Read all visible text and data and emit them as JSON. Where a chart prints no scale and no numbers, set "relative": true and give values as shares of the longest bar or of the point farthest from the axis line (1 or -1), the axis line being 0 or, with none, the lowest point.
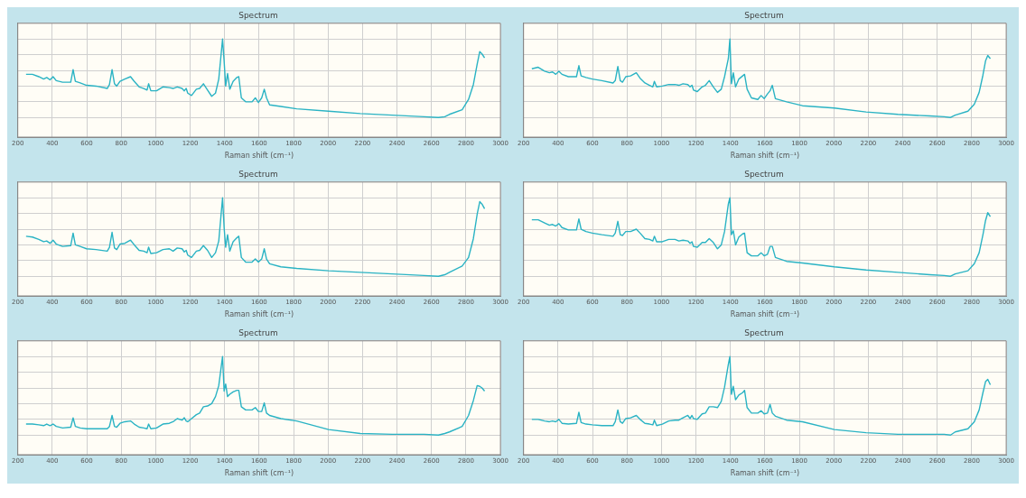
{
  "chart_data": [
    {
      "type": "line",
      "title": "Spectrum",
      "xlabel": "Raman shift (cm⁻¹)",
      "relative": true,
      "grid": true,
      "legend": false,
      "tick_labels": "x",
      "marker": "none",
      "xlim": [
        200,
        3000
      ],
      "xticks": [
        200,
        400,
        600,
        800,
        1000,
        1200,
        1400,
        1600,
        1800,
        2000,
        2200,
        2400,
        2600,
        2800,
        3000
      ],
      "x": [
        248,
        285,
        322,
        350,
        368,
        387,
        405,
        423,
        460,
        507,
        521,
        534,
        562,
        599,
        654,
        719,
        732,
        747,
        761,
        774,
        793,
        821,
        854,
        876,
        904,
        931,
        950,
        959,
        972,
        1005,
        1042,
        1079,
        1101,
        1125,
        1153,
        1166,
        1177,
        1186,
        1208,
        1236,
        1255,
        1277,
        1301,
        1325,
        1347,
        1366,
        1388,
        1397,
        1406,
        1417,
        1430,
        1449,
        1471,
        1482,
        1497,
        1522,
        1559,
        1578,
        1596,
        1615,
        1630,
        1643,
        1661,
        1726,
        1818,
        2003,
        2187,
        2372,
        2557,
        2640,
        2677,
        2704,
        2778,
        2815,
        2843,
        2865,
        2880,
        2893,
        2908
      ],
      "series": [
        {
          "color": "#2ab3c4",
          "values": [
            0.55,
            0.55,
            0.52,
            0.49,
            0.51,
            0.48,
            0.52,
            0.47,
            0.45,
            0.45,
            0.61,
            0.46,
            0.44,
            0.41,
            0.4,
            0.37,
            0.42,
            0.61,
            0.43,
            0.4,
            0.46,
            0.49,
            0.52,
            0.46,
            0.39,
            0.37,
            0.35,
            0.43,
            0.34,
            0.34,
            0.39,
            0.38,
            0.37,
            0.39,
            0.37,
            0.34,
            0.37,
            0.31,
            0.28,
            0.36,
            0.37,
            0.43,
            0.35,
            0.27,
            0.31,
            0.49,
            1,
            0.72,
            0.4,
            0.56,
            0.36,
            0.46,
            0.51,
            0.52,
            0.25,
            0.2,
            0.2,
            0.25,
            0.19,
            0.25,
            0.36,
            0.25,
            0.16,
            0.14,
            0.11,
            0.08,
            0.05,
            0.03,
            0.01,
            0,
            0.01,
            0.04,
            0.1,
            0.23,
            0.42,
            0.68,
            0.84,
            0.81,
            0.76
          ]
        }
      ]
    },
    {
      "type": "line",
      "title": "Spectrum",
      "xlabel": "Raman shift (cm⁻¹)",
      "relative": true,
      "grid": true,
      "legend": false,
      "tick_labels": "x",
      "marker": "none",
      "xlim": [
        200,
        3000
      ],
      "xticks": [
        200,
        400,
        600,
        800,
        1000,
        1200,
        1400,
        1600,
        1800,
        2000,
        2200,
        2400,
        2600,
        2800,
        3000
      ],
      "x": [
        248,
        285,
        322,
        350,
        368,
        387,
        405,
        423,
        460,
        507,
        521,
        534,
        562,
        599,
        654,
        719,
        732,
        747,
        761,
        774,
        793,
        821,
        854,
        876,
        904,
        931,
        950,
        959,
        972,
        1005,
        1042,
        1079,
        1101,
        1125,
        1153,
        1166,
        1177,
        1186,
        1208,
        1236,
        1255,
        1277,
        1301,
        1325,
        1347,
        1366,
        1388,
        1397,
        1406,
        1417,
        1430,
        1449,
        1471,
        1482,
        1497,
        1522,
        1559,
        1578,
        1596,
        1615,
        1630,
        1643,
        1661,
        1726,
        1818,
        2003,
        2187,
        2372,
        2557,
        2640,
        2677,
        2704,
        2778,
        2815,
        2843,
        2865,
        2880,
        2893,
        2908
      ],
      "series": [
        {
          "color": "#2ab3c4",
          "values": [
            0.62,
            0.64,
            0.59,
            0.57,
            0.58,
            0.55,
            0.59,
            0.55,
            0.52,
            0.52,
            0.66,
            0.53,
            0.51,
            0.49,
            0.47,
            0.44,
            0.47,
            0.65,
            0.47,
            0.45,
            0.52,
            0.53,
            0.57,
            0.5,
            0.44,
            0.41,
            0.39,
            0.46,
            0.39,
            0.4,
            0.42,
            0.42,
            0.41,
            0.43,
            0.42,
            0.39,
            0.41,
            0.35,
            0.33,
            0.39,
            0.41,
            0.47,
            0.39,
            0.32,
            0.36,
            0.52,
            0.75,
            1,
            0.43,
            0.57,
            0.39,
            0.49,
            0.53,
            0.55,
            0.36,
            0.25,
            0.23,
            0.28,
            0.24,
            0.3,
            0.34,
            0.41,
            0.24,
            0.2,
            0.15,
            0.12,
            0.07,
            0.04,
            0.02,
            0.01,
            0,
            0.03,
            0.08,
            0.17,
            0.32,
            0.54,
            0.72,
            0.79,
            0.75
          ]
        }
      ]
    },
    {
      "type": "line",
      "title": "Spectrum",
      "xlabel": "Raman shift (cm⁻¹)",
      "relative": true,
      "grid": true,
      "legend": false,
      "tick_labels": "x",
      "marker": "none",
      "xlim": [
        200,
        3000
      ],
      "xticks": [
        200,
        400,
        600,
        800,
        1000,
        1200,
        1400,
        1600,
        1800,
        2000,
        2200,
        2400,
        2600,
        2800,
        3000
      ],
      "x": [
        248,
        285,
        322,
        350,
        368,
        387,
        405,
        423,
        460,
        507,
        521,
        534,
        562,
        599,
        654,
        719,
        732,
        747,
        761,
        774,
        793,
        821,
        854,
        876,
        904,
        931,
        950,
        959,
        972,
        1005,
        1042,
        1079,
        1101,
        1125,
        1153,
        1166,
        1177,
        1186,
        1208,
        1236,
        1255,
        1277,
        1301,
        1325,
        1347,
        1366,
        1388,
        1397,
        1406,
        1417,
        1430,
        1449,
        1471,
        1482,
        1497,
        1522,
        1559,
        1578,
        1596,
        1615,
        1630,
        1643,
        1661,
        1726,
        1818,
        2003,
        2187,
        2372,
        2557,
        2640,
        2677,
        2704,
        2778,
        2815,
        2843,
        2865,
        2880,
        2893,
        2908
      ],
      "series": [
        {
          "color": "#2ab3c4",
          "values": [
            0.51,
            0.5,
            0.47,
            0.44,
            0.45,
            0.42,
            0.46,
            0.41,
            0.38,
            0.39,
            0.55,
            0.4,
            0.38,
            0.35,
            0.34,
            0.32,
            0.37,
            0.56,
            0.36,
            0.34,
            0.41,
            0.42,
            0.46,
            0.4,
            0.33,
            0.32,
            0.3,
            0.37,
            0.29,
            0.3,
            0.34,
            0.35,
            0.32,
            0.36,
            0.35,
            0.31,
            0.33,
            0.27,
            0.24,
            0.32,
            0.33,
            0.39,
            0.33,
            0.24,
            0.3,
            0.45,
            1,
            0.62,
            0.37,
            0.53,
            0.32,
            0.44,
            0.49,
            0.51,
            0.24,
            0.18,
            0.18,
            0.22,
            0.18,
            0.22,
            0.35,
            0.22,
            0.16,
            0.12,
            0.1,
            0.07,
            0.05,
            0.03,
            0.01,
            0,
            0.02,
            0.05,
            0.13,
            0.24,
            0.48,
            0.79,
            0.95,
            0.92,
            0.86
          ]
        }
      ]
    },
    {
      "type": "line",
      "title": "Spectrum",
      "xlabel": "Raman shift (cm⁻¹)",
      "relative": true,
      "grid": true,
      "legend": false,
      "tick_labels": "x",
      "marker": "none",
      "xlim": [
        200,
        3000
      ],
      "xticks": [
        200,
        400,
        600,
        800,
        1000,
        1200,
        1400,
        1600,
        1800,
        2000,
        2200,
        2400,
        2600,
        2800,
        3000
      ],
      "x": [
        248,
        285,
        322,
        350,
        368,
        387,
        405,
        423,
        460,
        507,
        521,
        534,
        562,
        599,
        654,
        719,
        732,
        747,
        761,
        774,
        793,
        821,
        854,
        876,
        904,
        931,
        950,
        959,
        972,
        1005,
        1042,
        1079,
        1101,
        1125,
        1153,
        1166,
        1177,
        1186,
        1208,
        1236,
        1255,
        1277,
        1301,
        1325,
        1347,
        1366,
        1388,
        1397,
        1406,
        1417,
        1430,
        1449,
        1471,
        1482,
        1497,
        1522,
        1559,
        1578,
        1596,
        1615,
        1630,
        1643,
        1661,
        1726,
        1818,
        2003,
        2187,
        2372,
        2557,
        2640,
        2677,
        2704,
        2778,
        2815,
        2843,
        2865,
        2880,
        2893,
        2908
      ],
      "series": [
        {
          "color": "#2ab3c4",
          "values": [
            0.72,
            0.72,
            0.68,
            0.65,
            0.66,
            0.64,
            0.67,
            0.62,
            0.59,
            0.59,
            0.73,
            0.6,
            0.57,
            0.55,
            0.53,
            0.51,
            0.55,
            0.7,
            0.53,
            0.52,
            0.57,
            0.57,
            0.6,
            0.55,
            0.48,
            0.47,
            0.45,
            0.51,
            0.44,
            0.44,
            0.47,
            0.47,
            0.45,
            0.46,
            0.45,
            0.42,
            0.44,
            0.38,
            0.37,
            0.43,
            0.43,
            0.48,
            0.43,
            0.35,
            0.4,
            0.57,
            0.92,
            1,
            0.53,
            0.58,
            0.4,
            0.5,
            0.54,
            0.55,
            0.3,
            0.26,
            0.26,
            0.3,
            0.26,
            0.28,
            0.38,
            0.38,
            0.24,
            0.19,
            0.17,
            0.12,
            0.08,
            0.05,
            0.02,
            0.01,
            0,
            0.03,
            0.07,
            0.16,
            0.3,
            0.53,
            0.71,
            0.81,
            0.76
          ]
        }
      ]
    },
    {
      "type": "line",
      "title": "Spectrum",
      "xlabel": "Raman shift (cm⁻¹)",
      "relative": true,
      "grid": true,
      "legend": false,
      "tick_labels": "x",
      "marker": "none",
      "xlim": [
        200,
        3000
      ],
      "xticks": [
        200,
        400,
        600,
        800,
        1000,
        1200,
        1400,
        1600,
        1800,
        2000,
        2200,
        2400,
        2600,
        2800,
        3000
      ],
      "x": [
        248,
        285,
        322,
        350,
        368,
        387,
        405,
        423,
        460,
        507,
        521,
        534,
        562,
        599,
        654,
        719,
        732,
        747,
        761,
        774,
        793,
        821,
        854,
        876,
        904,
        931,
        950,
        959,
        972,
        1005,
        1042,
        1079,
        1101,
        1125,
        1153,
        1166,
        1177,
        1186,
        1208,
        1236,
        1255,
        1277,
        1301,
        1325,
        1347,
        1366,
        1388,
        1397,
        1406,
        1417,
        1430,
        1449,
        1471,
        1482,
        1497,
        1522,
        1559,
        1578,
        1596,
        1615,
        1630,
        1643,
        1661,
        1726,
        1818,
        2003,
        2187,
        2372,
        2557,
        2640,
        2677,
        2704,
        2778,
        2815,
        2843,
        2865,
        2880,
        2893,
        2908
      ],
      "series": [
        {
          "color": "#2ab3c4",
          "values": [
            0.14,
            0.14,
            0.13,
            0.12,
            0.14,
            0.12,
            0.14,
            0.11,
            0.09,
            0.1,
            0.22,
            0.11,
            0.09,
            0.08,
            0.08,
            0.08,
            0.11,
            0.25,
            0.11,
            0.1,
            0.15,
            0.17,
            0.18,
            0.14,
            0.1,
            0.09,
            0.08,
            0.14,
            0.08,
            0.09,
            0.14,
            0.15,
            0.17,
            0.21,
            0.19,
            0.22,
            0.18,
            0.17,
            0.21,
            0.26,
            0.28,
            0.36,
            0.37,
            0.4,
            0.49,
            0.63,
            1,
            0.56,
            0.65,
            0.49,
            0.52,
            0.55,
            0.57,
            0.57,
            0.36,
            0.32,
            0.32,
            0.35,
            0.3,
            0.3,
            0.41,
            0.28,
            0.25,
            0.21,
            0.18,
            0.07,
            0.02,
            0.01,
            0.01,
            0,
            0.02,
            0.04,
            0.11,
            0.25,
            0.44,
            0.63,
            0.62,
            0.6,
            0.56
          ]
        }
      ]
    },
    {
      "type": "line",
      "title": "Spectrum",
      "xlabel": "Raman shift (cm⁻¹)",
      "relative": true,
      "grid": true,
      "legend": false,
      "tick_labels": "x",
      "marker": "none",
      "xlim": [
        200,
        3000
      ],
      "xticks": [
        200,
        400,
        600,
        800,
        1000,
        1200,
        1400,
        1600,
        1800,
        2000,
        2200,
        2400,
        2600,
        2800,
        3000
      ],
      "x": [
        248,
        285,
        322,
        350,
        368,
        387,
        405,
        423,
        460,
        507,
        521,
        534,
        562,
        599,
        654,
        719,
        732,
        747,
        761,
        774,
        793,
        821,
        854,
        876,
        904,
        931,
        950,
        959,
        972,
        1005,
        1042,
        1079,
        1101,
        1125,
        1153,
        1166,
        1177,
        1186,
        1208,
        1236,
        1255,
        1277,
        1301,
        1325,
        1347,
        1366,
        1388,
        1397,
        1406,
        1417,
        1430,
        1449,
        1471,
        1482,
        1497,
        1522,
        1559,
        1578,
        1596,
        1615,
        1630,
        1643,
        1661,
        1726,
        1818,
        2003,
        2187,
        2372,
        2557,
        2640,
        2677,
        2704,
        2778,
        2815,
        2843,
        2865,
        2880,
        2893,
        2908
      ],
      "series": [
        {
          "color": "#2ab3c4",
          "values": [
            0.2,
            0.2,
            0.18,
            0.17,
            0.18,
            0.17,
            0.2,
            0.15,
            0.14,
            0.15,
            0.29,
            0.16,
            0.14,
            0.13,
            0.12,
            0.12,
            0.17,
            0.32,
            0.17,
            0.15,
            0.21,
            0.22,
            0.25,
            0.2,
            0.15,
            0.14,
            0.13,
            0.19,
            0.12,
            0.14,
            0.18,
            0.19,
            0.19,
            0.22,
            0.25,
            0.21,
            0.25,
            0.21,
            0.2,
            0.27,
            0.28,
            0.36,
            0.36,
            0.35,
            0.43,
            0.61,
            0.9,
            1,
            0.52,
            0.62,
            0.45,
            0.51,
            0.54,
            0.57,
            0.35,
            0.28,
            0.28,
            0.31,
            0.27,
            0.28,
            0.39,
            0.28,
            0.24,
            0.19,
            0.17,
            0.07,
            0.03,
            0.01,
            0.01,
            0.01,
            0,
            0.04,
            0.08,
            0.17,
            0.32,
            0.54,
            0.68,
            0.71,
            0.64
          ]
        }
      ]
    }
  ]
}
